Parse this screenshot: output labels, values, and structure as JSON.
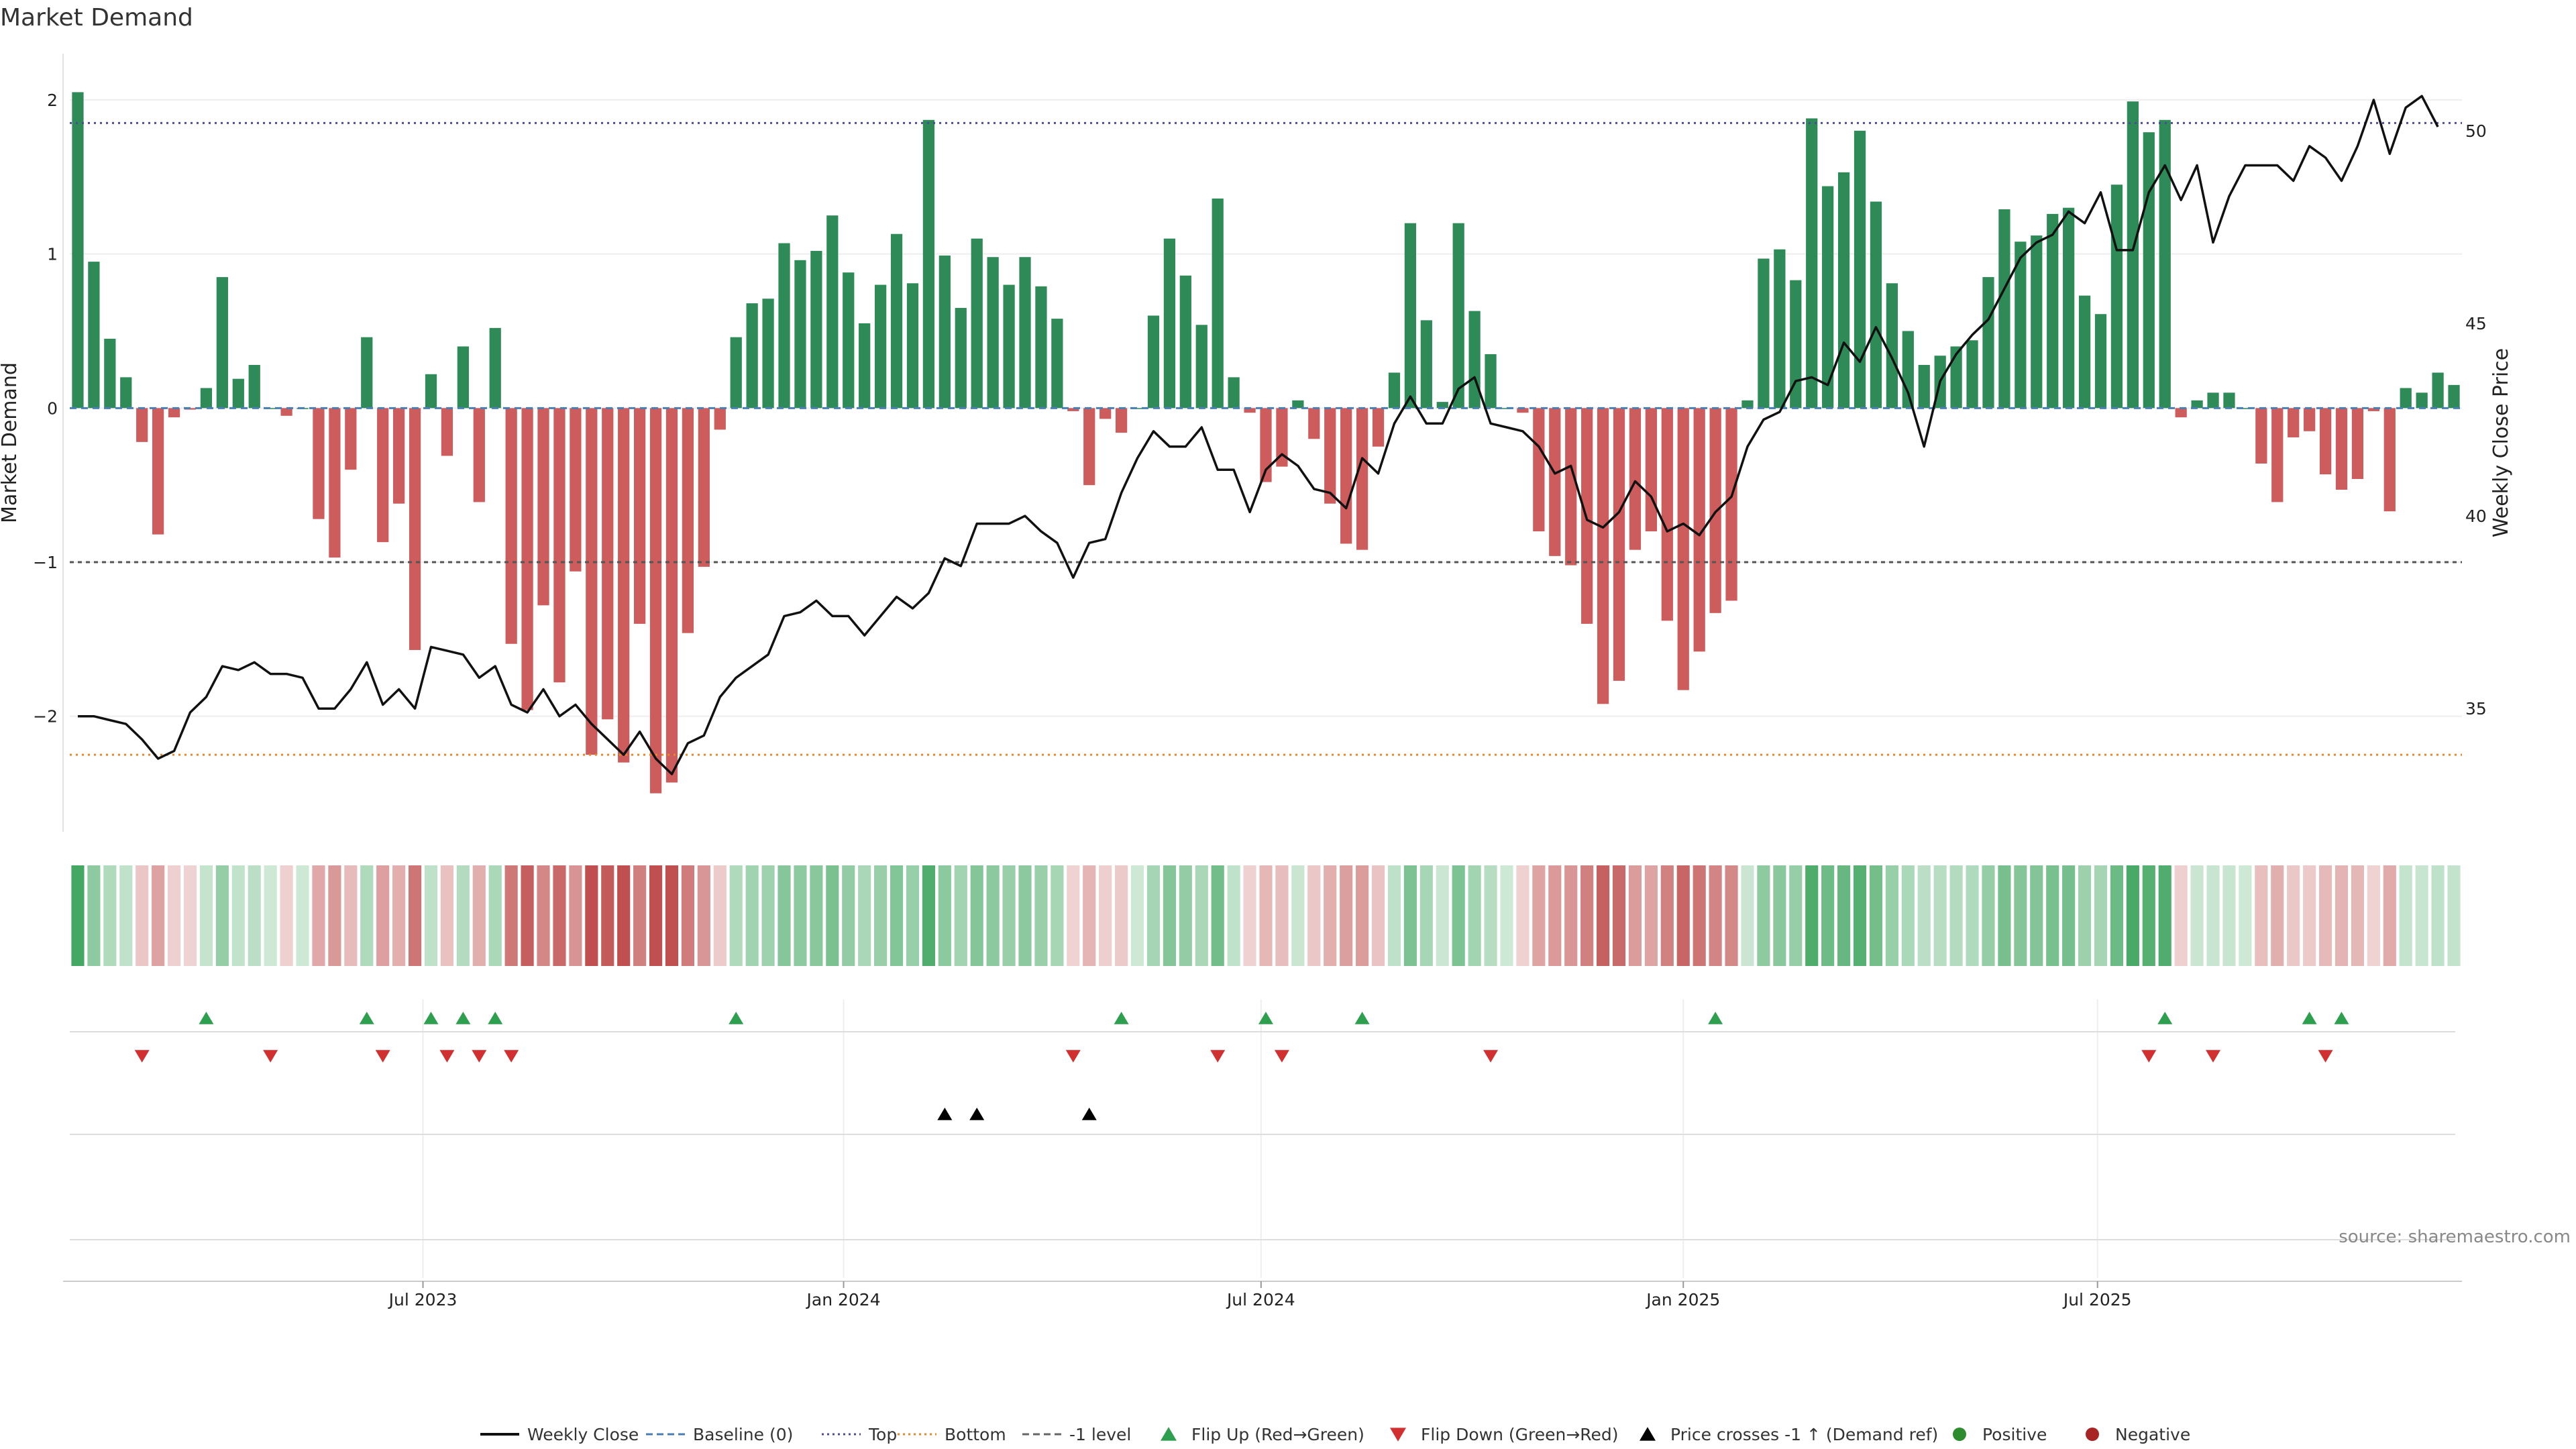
{
  "chart_data": {
    "type": "bar",
    "title": "Market Demand",
    "ylabel": "Market Demand",
    "y2label": "Weekly Close Price",
    "ylim": [
      -2.75,
      2.3
    ],
    "y2lim": [
      31.8,
      52.0
    ],
    "yticks": [
      -2,
      -1,
      0,
      1,
      2
    ],
    "ytick_labels": [
      "−2",
      "−1",
      "0",
      "1",
      "2"
    ],
    "y2ticks": [
      35,
      40,
      45,
      50
    ],
    "xtick_labels": [
      {
        "label": "Jul 2023",
        "week": 21.5
      },
      {
        "label": "Jan 2024",
        "week": 47.7
      },
      {
        "label": "Jul 2024",
        "week": 73.7
      },
      {
        "label": "Jan 2025",
        "week": 100.0
      },
      {
        "label": "Jul 2025",
        "week": 125.8
      }
    ],
    "levels": {
      "top": 1.85,
      "bottom": -2.25,
      "minus_one": -1
    },
    "demand": [
      2.05,
      0.95,
      0.45,
      0.2,
      -0.22,
      -0.82,
      -0.06,
      -0.01,
      0.13,
      0.85,
      0.19,
      0.28,
      0.0,
      -0.05,
      0.0,
      -0.72,
      -0.97,
      -0.4,
      0.46,
      -0.87,
      -0.62,
      -1.57,
      0.22,
      -0.31,
      0.4,
      -0.61,
      0.52,
      -1.53,
      -1.96,
      -1.28,
      -1.78,
      -1.06,
      -2.25,
      -2.02,
      -2.3,
      -1.4,
      -2.5,
      -2.43,
      -1.46,
      -1.03,
      -0.14,
      0.46,
      0.68,
      0.71,
      1.07,
      0.96,
      1.02,
      1.25,
      0.88,
      0.55,
      0.8,
      1.13,
      0.81,
      1.87,
      0.99,
      0.65,
      1.1,
      0.98,
      0.8,
      0.98,
      0.79,
      0.58,
      -0.02,
      -0.5,
      -0.07,
      -0.16,
      0.0,
      0.6,
      1.1,
      0.86,
      0.54,
      1.36,
      0.2,
      -0.03,
      -0.48,
      -0.38,
      0.05,
      -0.2,
      -0.62,
      -0.88,
      -0.92,
      -0.25,
      0.23,
      1.2,
      0.57,
      0.04,
      1.2,
      0.63,
      0.35,
      0.0,
      -0.03,
      -0.8,
      -0.96,
      -1.02,
      -1.4,
      -1.92,
      -1.77,
      -0.92,
      -0.8,
      -1.38,
      -1.83,
      -1.58,
      -1.33,
      -1.25,
      0.05,
      0.97,
      1.03,
      0.83,
      1.88,
      1.44,
      1.53,
      1.8,
      1.34,
      0.81,
      0.5,
      0.28,
      0.34,
      0.4,
      0.44,
      0.85,
      1.29,
      1.08,
      1.12,
      1.26,
      1.3,
      0.73,
      0.61,
      1.45,
      1.99,
      1.79,
      1.87,
      -0.06,
      0.05,
      0.1,
      0.1,
      0.0,
      -0.36,
      -0.61,
      -0.19,
      -0.15,
      -0.43,
      -0.53,
      -0.46,
      -0.02,
      -0.67,
      0.13,
      0.1,
      0.23,
      0.15
    ],
    "price": [
      34.8,
      34.8,
      34.7,
      34.6,
      34.2,
      33.7,
      33.9,
      34.9,
      35.3,
      36.1,
      36.0,
      36.2,
      35.9,
      35.9,
      35.8,
      35.0,
      35.0,
      35.5,
      36.2,
      35.1,
      35.5,
      35.0,
      36.6,
      36.5,
      36.4,
      35.8,
      36.1,
      35.1,
      34.9,
      35.5,
      34.8,
      35.1,
      34.6,
      34.2,
      33.8,
      34.4,
      33.7,
      33.3,
      34.1,
      34.3,
      35.3,
      35.8,
      36.1,
      36.4,
      37.4,
      37.5,
      37.8,
      37.4,
      37.4,
      36.9,
      37.4,
      37.9,
      37.6,
      38.0,
      38.9,
      38.7,
      39.8,
      39.8,
      39.8,
      40.0,
      39.6,
      39.3,
      38.4,
      39.3,
      39.4,
      40.6,
      41.5,
      42.2,
      41.8,
      41.8,
      42.3,
      41.2,
      41.2,
      40.1,
      41.2,
      41.6,
      41.3,
      40.7,
      40.6,
      40.2,
      41.5,
      41.1,
      42.4,
      43.1,
      42.4,
      42.4,
      43.3,
      43.6,
      42.4,
      42.3,
      42.2,
      41.8,
      41.1,
      41.3,
      39.9,
      39.7,
      40.1,
      40.9,
      40.5,
      39.6,
      39.8,
      39.5,
      40.1,
      40.5,
      41.8,
      42.5,
      42.7,
      43.5,
      43.6,
      43.4,
      44.5,
      44.0,
      44.9,
      44.1,
      43.2,
      41.8,
      43.5,
      44.2,
      44.7,
      45.1,
      45.9,
      46.7,
      47.1,
      47.3,
      47.9,
      47.6,
      48.4,
      46.9,
      46.9,
      48.4,
      49.1,
      48.2,
      49.1,
      47.1,
      48.3,
      49.1,
      49.1,
      49.1,
      48.7,
      49.6,
      49.3,
      48.7,
      49.6,
      50.8,
      49.4,
      50.6,
      50.9,
      50.1
    ],
    "flip_up_weeks": [
      8,
      18,
      22,
      24,
      26,
      41,
      65,
      74,
      80,
      102,
      130,
      139,
      141
    ],
    "flip_down_weeks": [
      4,
      12,
      19,
      23,
      25,
      27,
      62,
      71,
      75,
      88,
      129,
      133,
      140
    ],
    "price_cross_weeks": [
      54,
      56,
      63
    ],
    "legend": [
      {
        "label": "Weekly Close",
        "kind": "line",
        "color": "#111111"
      },
      {
        "label": "Baseline (0)",
        "kind": "dash",
        "color": "#4a7fb5"
      },
      {
        "label": "Top",
        "kind": "dot",
        "color": "#4b4b9a"
      },
      {
        "label": "Bottom",
        "kind": "dot",
        "color": "#e8862a"
      },
      {
        "label": "-1 level",
        "kind": "dash",
        "color": "#666666"
      },
      {
        "label": "Flip Up (Red→Green)",
        "kind": "tri-up",
        "color": "#2e9e4f"
      },
      {
        "label": "Flip Down (Green→Red)",
        "kind": "tri-down",
        "color": "#d03030"
      },
      {
        "label": "Price crosses -1 ↑ (Demand ref)",
        "kind": "tri-up",
        "color": "#000000"
      },
      {
        "label": "Positive",
        "kind": "circle",
        "color": "#2e8b2e"
      },
      {
        "label": "Negative",
        "kind": "circle",
        "color": "#a82525"
      }
    ],
    "source": "source: sharemaestro.com"
  },
  "colors": {
    "positive": "#2e8b57",
    "negative": "#cd5c5c",
    "price": "#111111",
    "top": "#4b4b9a",
    "bottom": "#e8862a",
    "minus_one": "#555555",
    "baseline": "#4a7fb5"
  }
}
